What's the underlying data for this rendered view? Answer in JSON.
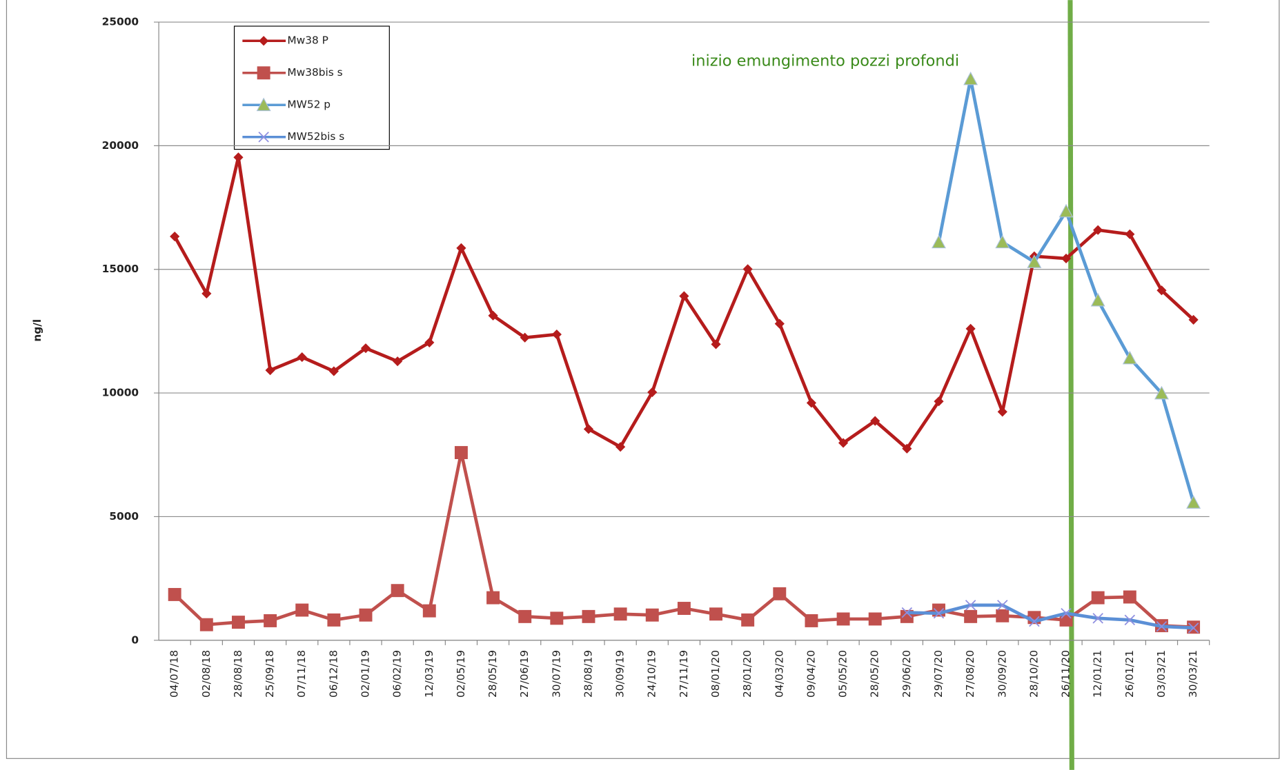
{
  "chart_data": {
    "type": "line",
    "y_label": "ng/l",
    "annotation": "inizio emungimento pozzi profondi",
    "categories": [
      "04/07/18",
      "02/08/18",
      "28/08/18",
      "25/09/18",
      "07/11/18",
      "06/12/18",
      "02/01/19",
      "06/02/19",
      "12/03/19",
      "02/05/19",
      "28/05/19",
      "27/06/19",
      "30/07/19",
      "28/08/19",
      "30/09/19",
      "24/10/19",
      "27/11/19",
      "08/01/20",
      "28/01/20",
      "04/03/20",
      "09/04/20",
      "05/05/20",
      "28/05/20",
      "29/06/20",
      "29/07/20",
      "27/08/20",
      "30/09/20",
      "28/10/20",
      "26/11/20",
      "12/01/21",
      "26/01/21",
      "03/03/21",
      "30/03/21"
    ],
    "series": [
      {
        "name": "Mw38 P",
        "color": "#b51c1c",
        "marker": "diamond",
        "marker_color": "#b51c1c",
        "values": [
          16330,
          14020,
          19530,
          10920,
          11450,
          10880,
          11810,
          11280,
          12040,
          15860,
          13130,
          12240,
          12370,
          8540,
          7820,
          10030,
          13920,
          11970,
          15010,
          12800,
          9600,
          7980,
          8870,
          7750,
          9660,
          12600,
          9240,
          15530,
          15440,
          16590,
          16420,
          14150,
          12960
        ]
      },
      {
        "name": "Mw38bis s",
        "color": "#c0504d",
        "marker": "square",
        "marker_color": "#c0504d",
        "values": [
          1850,
          630,
          730,
          790,
          1220,
          820,
          1020,
          2010,
          1190,
          7590,
          1720,
          960,
          890,
          960,
          1060,
          1020,
          1290,
          1060,
          820,
          1880,
          790,
          860,
          860,
          960,
          1220,
          960,
          990,
          920,
          820,
          1720,
          1750,
          590,
          530
        ]
      },
      {
        "name": "MW52 p",
        "color": "#5b9bd5",
        "marker": "triangle",
        "marker_color": "#9bbb59",
        "values": [
          null,
          null,
          null,
          null,
          null,
          null,
          null,
          null,
          null,
          null,
          null,
          null,
          null,
          null,
          null,
          null,
          null,
          null,
          null,
          null,
          null,
          null,
          null,
          null,
          16100,
          22700,
          16100,
          15300,
          17350,
          13750,
          11410,
          9990,
          5570
        ]
      },
      {
        "name": "MW52bis s",
        "color": "#5b8fd6",
        "marker": "x",
        "marker_color": "#8f8fe0",
        "values": [
          null,
          null,
          null,
          null,
          null,
          null,
          null,
          null,
          null,
          null,
          null,
          null,
          null,
          null,
          null,
          null,
          null,
          null,
          null,
          null,
          null,
          null,
          null,
          1120,
          1090,
          1420,
          1420,
          760,
          1090,
          890,
          820,
          560,
          500
        ]
      }
    ],
    "ylim": [
      0,
      25000
    ],
    "yticks": [
      0,
      5000,
      10000,
      15000,
      20000,
      25000
    ],
    "grid": true
  }
}
